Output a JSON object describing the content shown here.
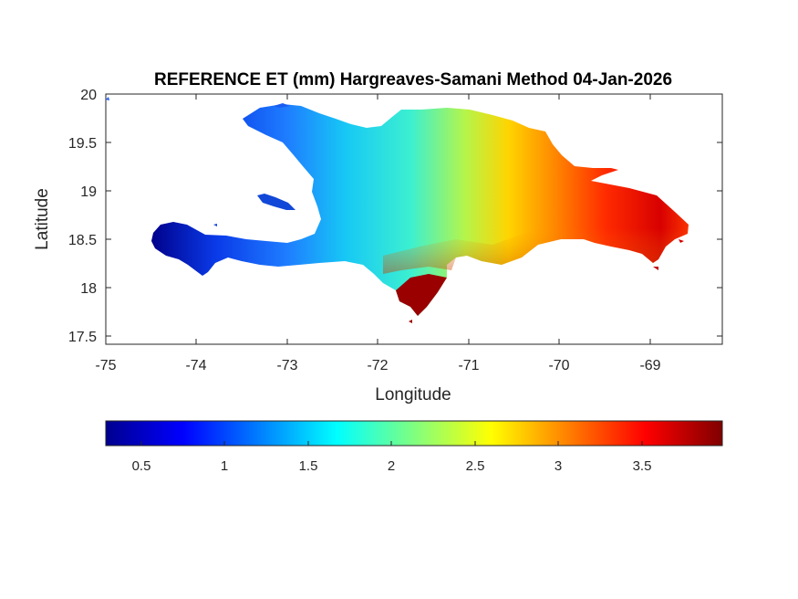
{
  "figure": {
    "title": "REFERENCE ET (mm) Hargreaves-Samani Method  04-Jan-2026",
    "xlabel": "Longitude",
    "ylabel": "Latitude",
    "xlim": [
      -75,
      -68.2
    ],
    "ylim": [
      17.4,
      20
    ],
    "xticks": [
      "-75",
      "-74",
      "-73",
      "-72",
      "-71",
      "-70",
      "-69"
    ],
    "yticks": [
      "17.5",
      "18",
      "18.5",
      "19",
      "19.5",
      "20"
    ],
    "colormap": "jet",
    "colorbar": {
      "range": [
        0.25,
        3.95
      ],
      "ticks": [
        "0.5",
        "1",
        "1.5",
        "2",
        "2.5",
        "3",
        "3.5"
      ],
      "orientation": "horizontal",
      "placement": "below"
    }
  },
  "colors": {
    "low": "#00008f",
    "mid_low": "#0080ff",
    "mid": "#00ffff",
    "mid_high": "#ffff00",
    "high": "#ff0000",
    "max": "#800000"
  }
}
